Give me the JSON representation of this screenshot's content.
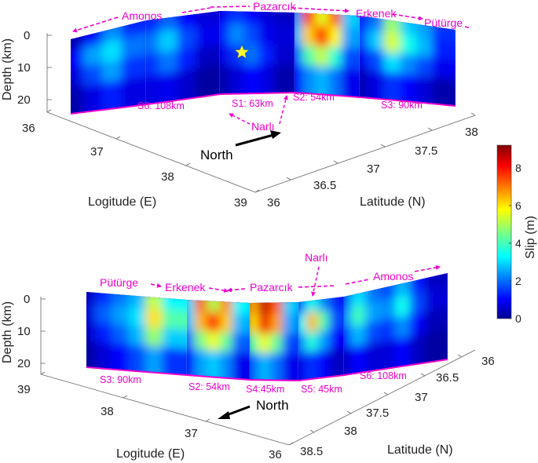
{
  "chart_data": [
    {
      "type": "heatmap",
      "view": "upper",
      "axes": {
        "depth_label": "Depth (km)",
        "depth_ticks": [
          "0",
          "10",
          "20"
        ],
        "lon_label": "Logitude (E)",
        "lon_ticks": [
          "36",
          "37",
          "38",
          "39"
        ],
        "lat_label": "Latitude (N)",
        "lat_ticks": [
          "36",
          "36.5",
          "37",
          "37.5",
          "38"
        ]
      },
      "north_label": "North",
      "epicenter_marker": "star",
      "segments": [
        {
          "label": "S6: 108km",
          "slip": [
            [
              0.5,
              1.2,
              2.4,
              1.5,
              2.0,
              1.2,
              0.8
            ],
            [
              1.2,
              2.6,
              3.2,
              2.2,
              3.0,
              1.8,
              1.0
            ],
            [
              0.8,
              1.8,
              2.6,
              1.6,
              2.2,
              1.4,
              0.6
            ],
            [
              0.4,
              0.9,
              1.4,
              0.9,
              1.0,
              0.7,
              0.3
            ]
          ]
        },
        {
          "label": "S1: 63km",
          "slip": [
            [
              1.0,
              1.6,
              1.2,
              0.8,
              0.6
            ],
            [
              1.4,
              2.4,
              1.8,
              1.0,
              0.8
            ],
            [
              0.9,
              1.6,
              2.2,
              1.4,
              0.7
            ],
            [
              0.4,
              0.8,
              1.2,
              0.9,
              0.4
            ]
          ]
        },
        {
          "label": "S2: 54km",
          "slip": [
            [
              2.5,
              7.5,
              5.5,
              7.2,
              3.0
            ],
            [
              2.8,
              6.2,
              7.8,
              5.8,
              2.6
            ],
            [
              2.0,
              4.2,
              5.2,
              3.8,
              1.8
            ],
            [
              1.2,
              2.4,
              2.8,
              2.2,
              1.0
            ]
          ]
        },
        {
          "label": "S3: 90km",
          "slip": [
            [
              1.5,
              2.2,
              4.8,
              3.0,
              2.6,
              1.6
            ],
            [
              1.8,
              3.0,
              5.4,
              3.6,
              2.8,
              1.4
            ],
            [
              1.0,
              1.8,
              3.2,
              2.4,
              1.8,
              1.0
            ],
            [
              0.5,
              0.9,
              1.6,
              1.2,
              0.8,
              0.4
            ]
          ]
        }
      ],
      "annotations": [
        "Amonos",
        "Pazarcık",
        "Erkenek",
        "Pütürge",
        "Narlı"
      ]
    },
    {
      "type": "heatmap",
      "view": "lower",
      "axes": {
        "depth_label": "Depth (km)",
        "depth_ticks": [
          "0",
          "10",
          "20"
        ],
        "lon_label": "Logitude (E)",
        "lon_ticks": [
          "39",
          "38",
          "37",
          "36"
        ],
        "lat_label": "Latitude (N)",
        "lat_ticks": [
          "36",
          "36.5",
          "37",
          "37.5",
          "38",
          "38.5"
        ]
      },
      "north_label": "North",
      "segments": [
        {
          "label": "S3: 90km",
          "slip": [
            [
              0.5,
              1.5,
              2.2,
              2.8,
              5.2,
              3.4
            ],
            [
              0.8,
              2.0,
              2.6,
              3.2,
              6.0,
              4.2
            ],
            [
              0.6,
              1.4,
              2.0,
              2.8,
              4.8,
              3.0
            ],
            [
              0.3,
              0.8,
              1.2,
              1.8,
              2.6,
              1.6
            ]
          ]
        },
        {
          "label": "S2: 54km",
          "slip": [
            [
              3.2,
              7.2,
              5.0,
              6.8,
              3.4
            ],
            [
              3.0,
              6.4,
              8.0,
              6.2,
              2.8
            ],
            [
              2.2,
              4.6,
              5.6,
              4.4,
              2.0
            ],
            [
              1.2,
              2.6,
              3.0,
              2.4,
              1.0
            ]
          ]
        },
        {
          "label": "S4:45km",
          "slip": [
            [
              6.5,
              8.6,
              7.2,
              3.0
            ],
            [
              6.0,
              8.2,
              6.6,
              2.6
            ],
            [
              4.2,
              5.6,
              4.4,
              1.8
            ],
            [
              2.0,
              2.8,
              2.2,
              1.0
            ]
          ]
        },
        {
          "label": "S5: 45km",
          "slip": [
            [
              2.2,
              3.6,
              2.4,
              1.4
            ],
            [
              3.4,
              6.4,
              4.2,
              1.8
            ],
            [
              2.4,
              3.8,
              2.6,
              1.2
            ],
            [
              1.0,
              1.6,
              1.2,
              0.6
            ]
          ]
        },
        {
          "label": "S6: 108km",
          "slip": [
            [
              1.8,
              3.2,
              2.2,
              1.8,
              2.8,
              1.4,
              0.6
            ],
            [
              2.2,
              4.0,
              2.6,
              2.4,
              3.6,
              1.8,
              0.8
            ],
            [
              1.4,
              2.8,
              1.8,
              1.6,
              2.4,
              1.2,
              0.5
            ],
            [
              0.6,
              1.2,
              0.8,
              0.8,
              1.2,
              0.6,
              0.3
            ]
          ]
        }
      ],
      "annotations": [
        "Pütürge",
        "Erkenek",
        "Pazarcık",
        "Narlı",
        "Amonos"
      ]
    }
  ],
  "colorbar": {
    "label": "Slip (m)",
    "ticks": [
      "0",
      "2",
      "4",
      "6",
      "8"
    ],
    "range": [
      0,
      9.2
    ],
    "colormap": "jet"
  },
  "colors": {
    "annotation": "#ee00cc",
    "background": "#ffffff"
  }
}
